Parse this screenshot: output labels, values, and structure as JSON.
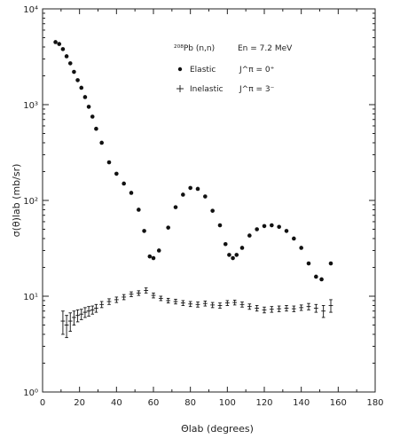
{
  "chart_data": {
    "type": "scatter",
    "title": "",
    "xlabel": "Θlab (degrees)",
    "ylabel": "σ(θ)lab (mb/sr)",
    "xscale": "linear",
    "yscale": "log",
    "xlim": [
      0,
      180
    ],
    "ylim": [
      1,
      10000
    ],
    "xticks": [
      "0",
      "20",
      "40",
      "60",
      "80",
      "100",
      "120",
      "140",
      "160",
      "180"
    ],
    "yticks": [
      "10⁰",
      "10¹",
      "10²",
      "10³",
      "10⁴"
    ],
    "grid": false,
    "legend": {
      "placement": "top-right",
      "reaction": "²⁰⁸Pb (n,n)",
      "energy": "En = 7.2 MeV",
      "entries": [
        {
          "label": "Elastic",
          "spin": "J^π = 0⁺",
          "marker": "dot"
        },
        {
          "label": "Inelastic",
          "spin": "J^π = 3⁻",
          "marker": "plus"
        }
      ]
    },
    "series": [
      {
        "name": "Elastic",
        "marker": "dot",
        "x": [
          7,
          9,
          11,
          13,
          15,
          17,
          19,
          21,
          23,
          25,
          27,
          29,
          32,
          36,
          40,
          44,
          48,
          52,
          55,
          58,
          60,
          63,
          68,
          72,
          76,
          80,
          84,
          88,
          92,
          96,
          99,
          101,
          103,
          105,
          108,
          112,
          116,
          120,
          124,
          128,
          132,
          136,
          140,
          144,
          148,
          151,
          156
        ],
        "y": [
          4500,
          4300,
          3800,
          3200,
          2700,
          2200,
          1800,
          1500,
          1200,
          950,
          750,
          560,
          400,
          250,
          190,
          150,
          120,
          80,
          48,
          26,
          25,
          30,
          52,
          85,
          115,
          135,
          132,
          110,
          78,
          55,
          35,
          27,
          25,
          27,
          32,
          43,
          50,
          54,
          55,
          53,
          48,
          40,
          32,
          22,
          16,
          15,
          22
        ]
      },
      {
        "name": "Inelastic",
        "marker": "plus",
        "x": [
          11,
          13,
          15,
          17,
          19,
          21,
          23,
          25,
          27,
          29,
          32,
          36,
          40,
          44,
          48,
          52,
          56,
          60,
          64,
          68,
          72,
          76,
          80,
          84,
          88,
          92,
          96,
          100,
          104,
          108,
          112,
          116,
          120,
          124,
          128,
          132,
          136,
          140,
          144,
          148,
          152,
          156
        ],
        "y": [
          5.5,
          5.0,
          5.5,
          6.0,
          6.3,
          6.5,
          6.8,
          7.0,
          7.2,
          7.5,
          8.2,
          8.8,
          9.2,
          9.8,
          10.5,
          10.8,
          11.5,
          10.2,
          9.5,
          9.0,
          8.8,
          8.5,
          8.3,
          8.2,
          8.4,
          8.1,
          8.0,
          8.5,
          8.6,
          8.2,
          7.8,
          7.5,
          7.2,
          7.3,
          7.4,
          7.5,
          7.4,
          7.6,
          7.8,
          7.5,
          7.0,
          8.0
        ],
        "err": [
          1.5,
          1.3,
          1.2,
          1.0,
          0.9,
          0.8,
          0.8,
          0.8,
          0.7,
          0.7,
          0.6,
          0.6,
          0.6,
          0.6,
          0.6,
          0.6,
          0.7,
          0.6,
          0.5,
          0.5,
          0.5,
          0.5,
          0.5,
          0.5,
          0.5,
          0.5,
          0.5,
          0.5,
          0.5,
          0.5,
          0.5,
          0.5,
          0.5,
          0.5,
          0.5,
          0.5,
          0.5,
          0.5,
          0.6,
          0.7,
          1.0,
          1.2
        ]
      }
    ]
  }
}
